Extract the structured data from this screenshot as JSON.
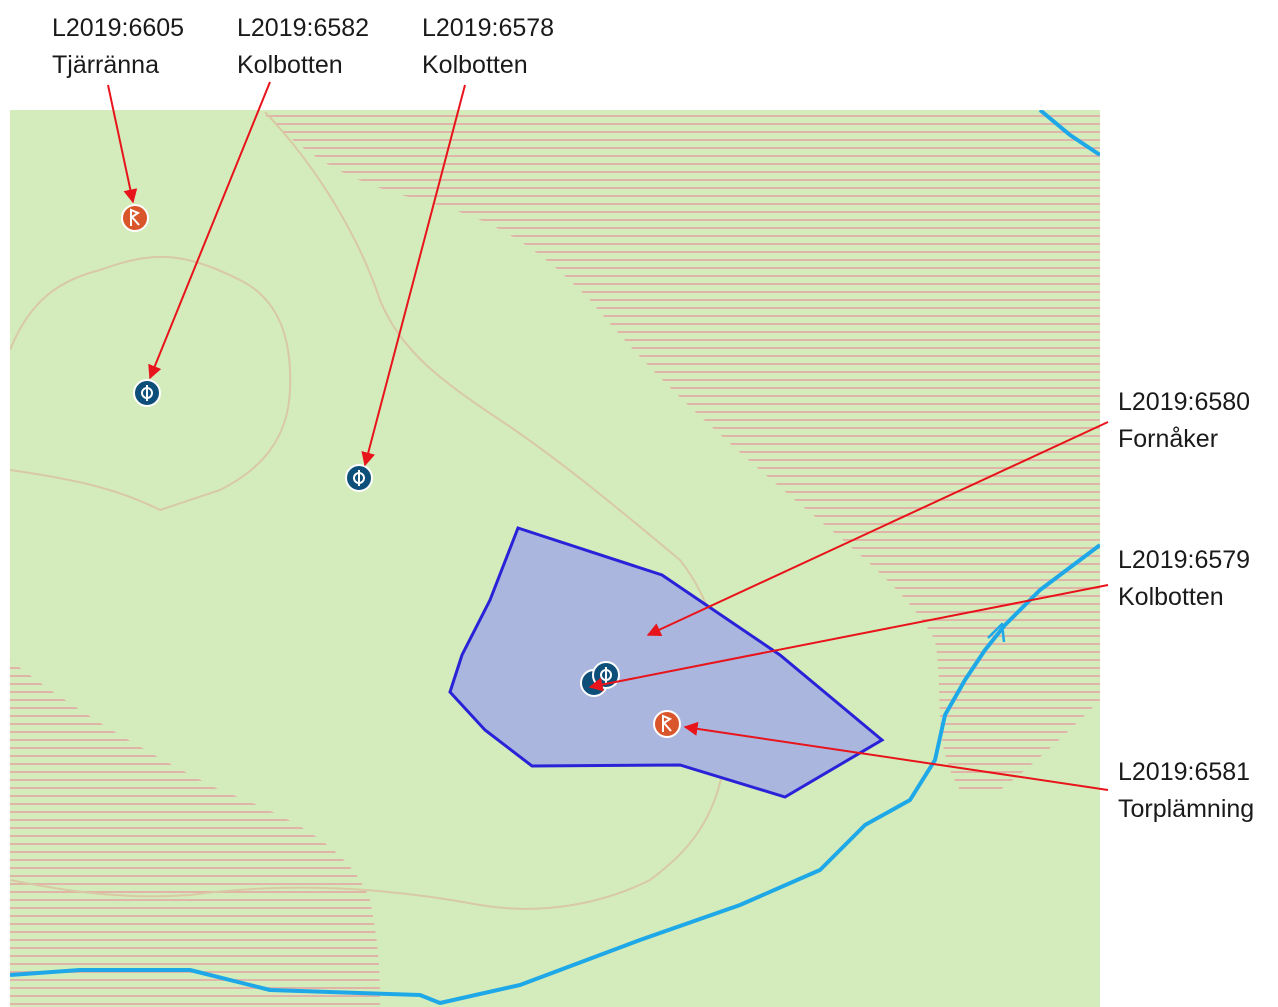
{
  "annotations": [
    {
      "id": "L2019:6605",
      "name": "Tjärränna"
    },
    {
      "id": "L2019:6582",
      "name": "Kolbotten"
    },
    {
      "id": "L2019:6578",
      "name": "Kolbotten"
    },
    {
      "id": "L2019:6580",
      "name": "Fornåker"
    },
    {
      "id": "L2019:6579",
      "name": "Kolbotten"
    },
    {
      "id": "L2019:6581",
      "name": "Torplämning"
    }
  ]
}
